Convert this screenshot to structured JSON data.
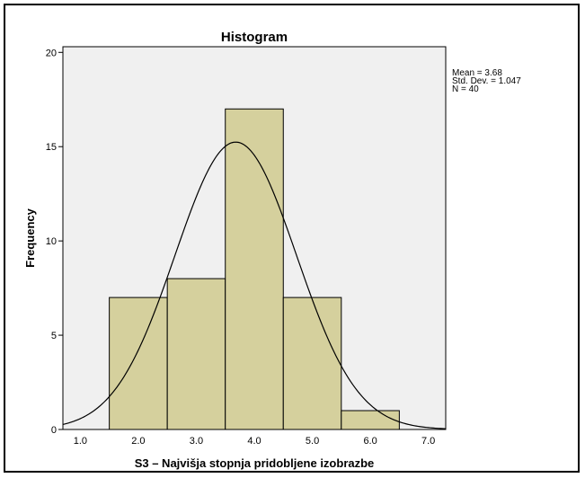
{
  "chart_data": {
    "type": "bar",
    "title": "Histogram",
    "xlabel": "S3 – Najvišja stopnja pridobljene izobrazbe",
    "ylabel": "Frequency",
    "x_ticks": [
      "1.0",
      "2.0",
      "3.0",
      "4.0",
      "5.0",
      "6.0",
      "7.0"
    ],
    "x_tick_values": [
      1,
      2,
      3,
      4,
      5,
      6,
      7
    ],
    "y_ticks": [
      "0",
      "5",
      "10",
      "15",
      "20"
    ],
    "y_tick_values": [
      0,
      5,
      10,
      15,
      20
    ],
    "xlim": [
      0.7,
      7.3
    ],
    "ylim": [
      0,
      20.3
    ],
    "bins": [
      {
        "start": 1.5,
        "end": 2.5,
        "count": 7
      },
      {
        "start": 2.5,
        "end": 3.5,
        "count": 8
      },
      {
        "start": 3.5,
        "end": 4.5,
        "count": 17
      },
      {
        "start": 4.5,
        "end": 5.5,
        "count": 7
      },
      {
        "start": 5.5,
        "end": 6.5,
        "count": 1
      }
    ],
    "normal_curve": {
      "mean": 3.68,
      "std": 1.047,
      "n": 40,
      "bin_width": 1
    },
    "stats_lines": [
      "Mean = 3.68",
      "Std. Dev. = 1.047",
      "N = 40"
    ],
    "colors": {
      "bar_fill": "#d5d09d",
      "plot_bg": "#f0f0f0",
      "line": "#000000"
    }
  }
}
